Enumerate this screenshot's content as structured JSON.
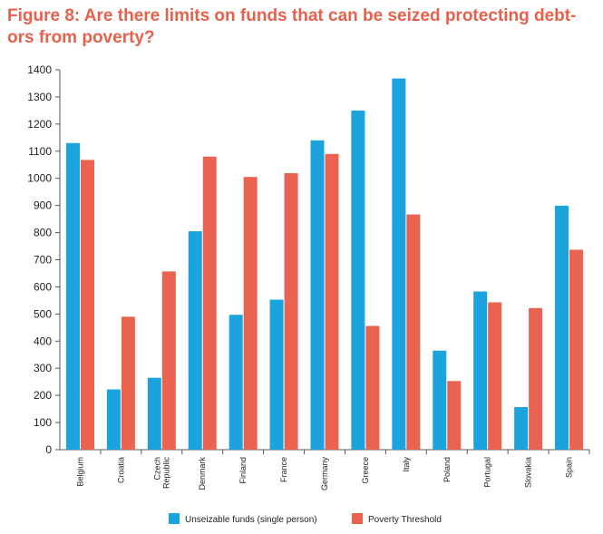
{
  "colors": {
    "title": "#e8604c",
    "series_1": "#1aa3dc",
    "series_2": "#ea6351",
    "axis": "#555555"
  },
  "chart_data": {
    "type": "bar",
    "title": "Figure 8: Are there limits on funds that can be seized protecting debt-ors from poverty?",
    "title_lines": [
      "Figure 8: Are there limits on funds that can be seized protecting debt-",
      "ors from poverty?"
    ],
    "categories": [
      "Belgium",
      "Croatia",
      "Czech Republic",
      "Denmark",
      "Finland",
      "France",
      "Germany",
      "Greece",
      "Italy",
      "Poland",
      "Portugal",
      "Slovakia",
      "Spain"
    ],
    "category_lines": [
      [
        "Belgium"
      ],
      [
        "Croatia"
      ],
      [
        "Czech",
        "Republic"
      ],
      [
        "Denmark"
      ],
      [
        "Finland"
      ],
      [
        "France"
      ],
      [
        "Germany"
      ],
      [
        "Greece"
      ],
      [
        "Italy"
      ],
      [
        "Poland"
      ],
      [
        "Portugal"
      ],
      [
        "Slovakia"
      ],
      [
        "Spain"
      ]
    ],
    "series": [
      {
        "name": "Unseizable funds (single person)",
        "values": [
          1130,
          222,
          265,
          805,
          497,
          553,
          1140,
          1250,
          1368,
          365,
          583,
          157,
          899
        ]
      },
      {
        "name": "Poverty Threshold",
        "values": [
          1068,
          490,
          657,
          1080,
          1005,
          1019,
          1090,
          456,
          867,
          253,
          543,
          522,
          737
        ]
      }
    ],
    "xlabel": "",
    "ylabel": "",
    "ylim": [
      0,
      1400
    ],
    "yticks": [
      "0",
      "100",
      "200",
      "300",
      "400",
      "500",
      "600",
      "700",
      "800",
      "900",
      "1000",
      "1100",
      "1200",
      "1300",
      "1400"
    ],
    "grid": false,
    "legend": "bottom"
  }
}
